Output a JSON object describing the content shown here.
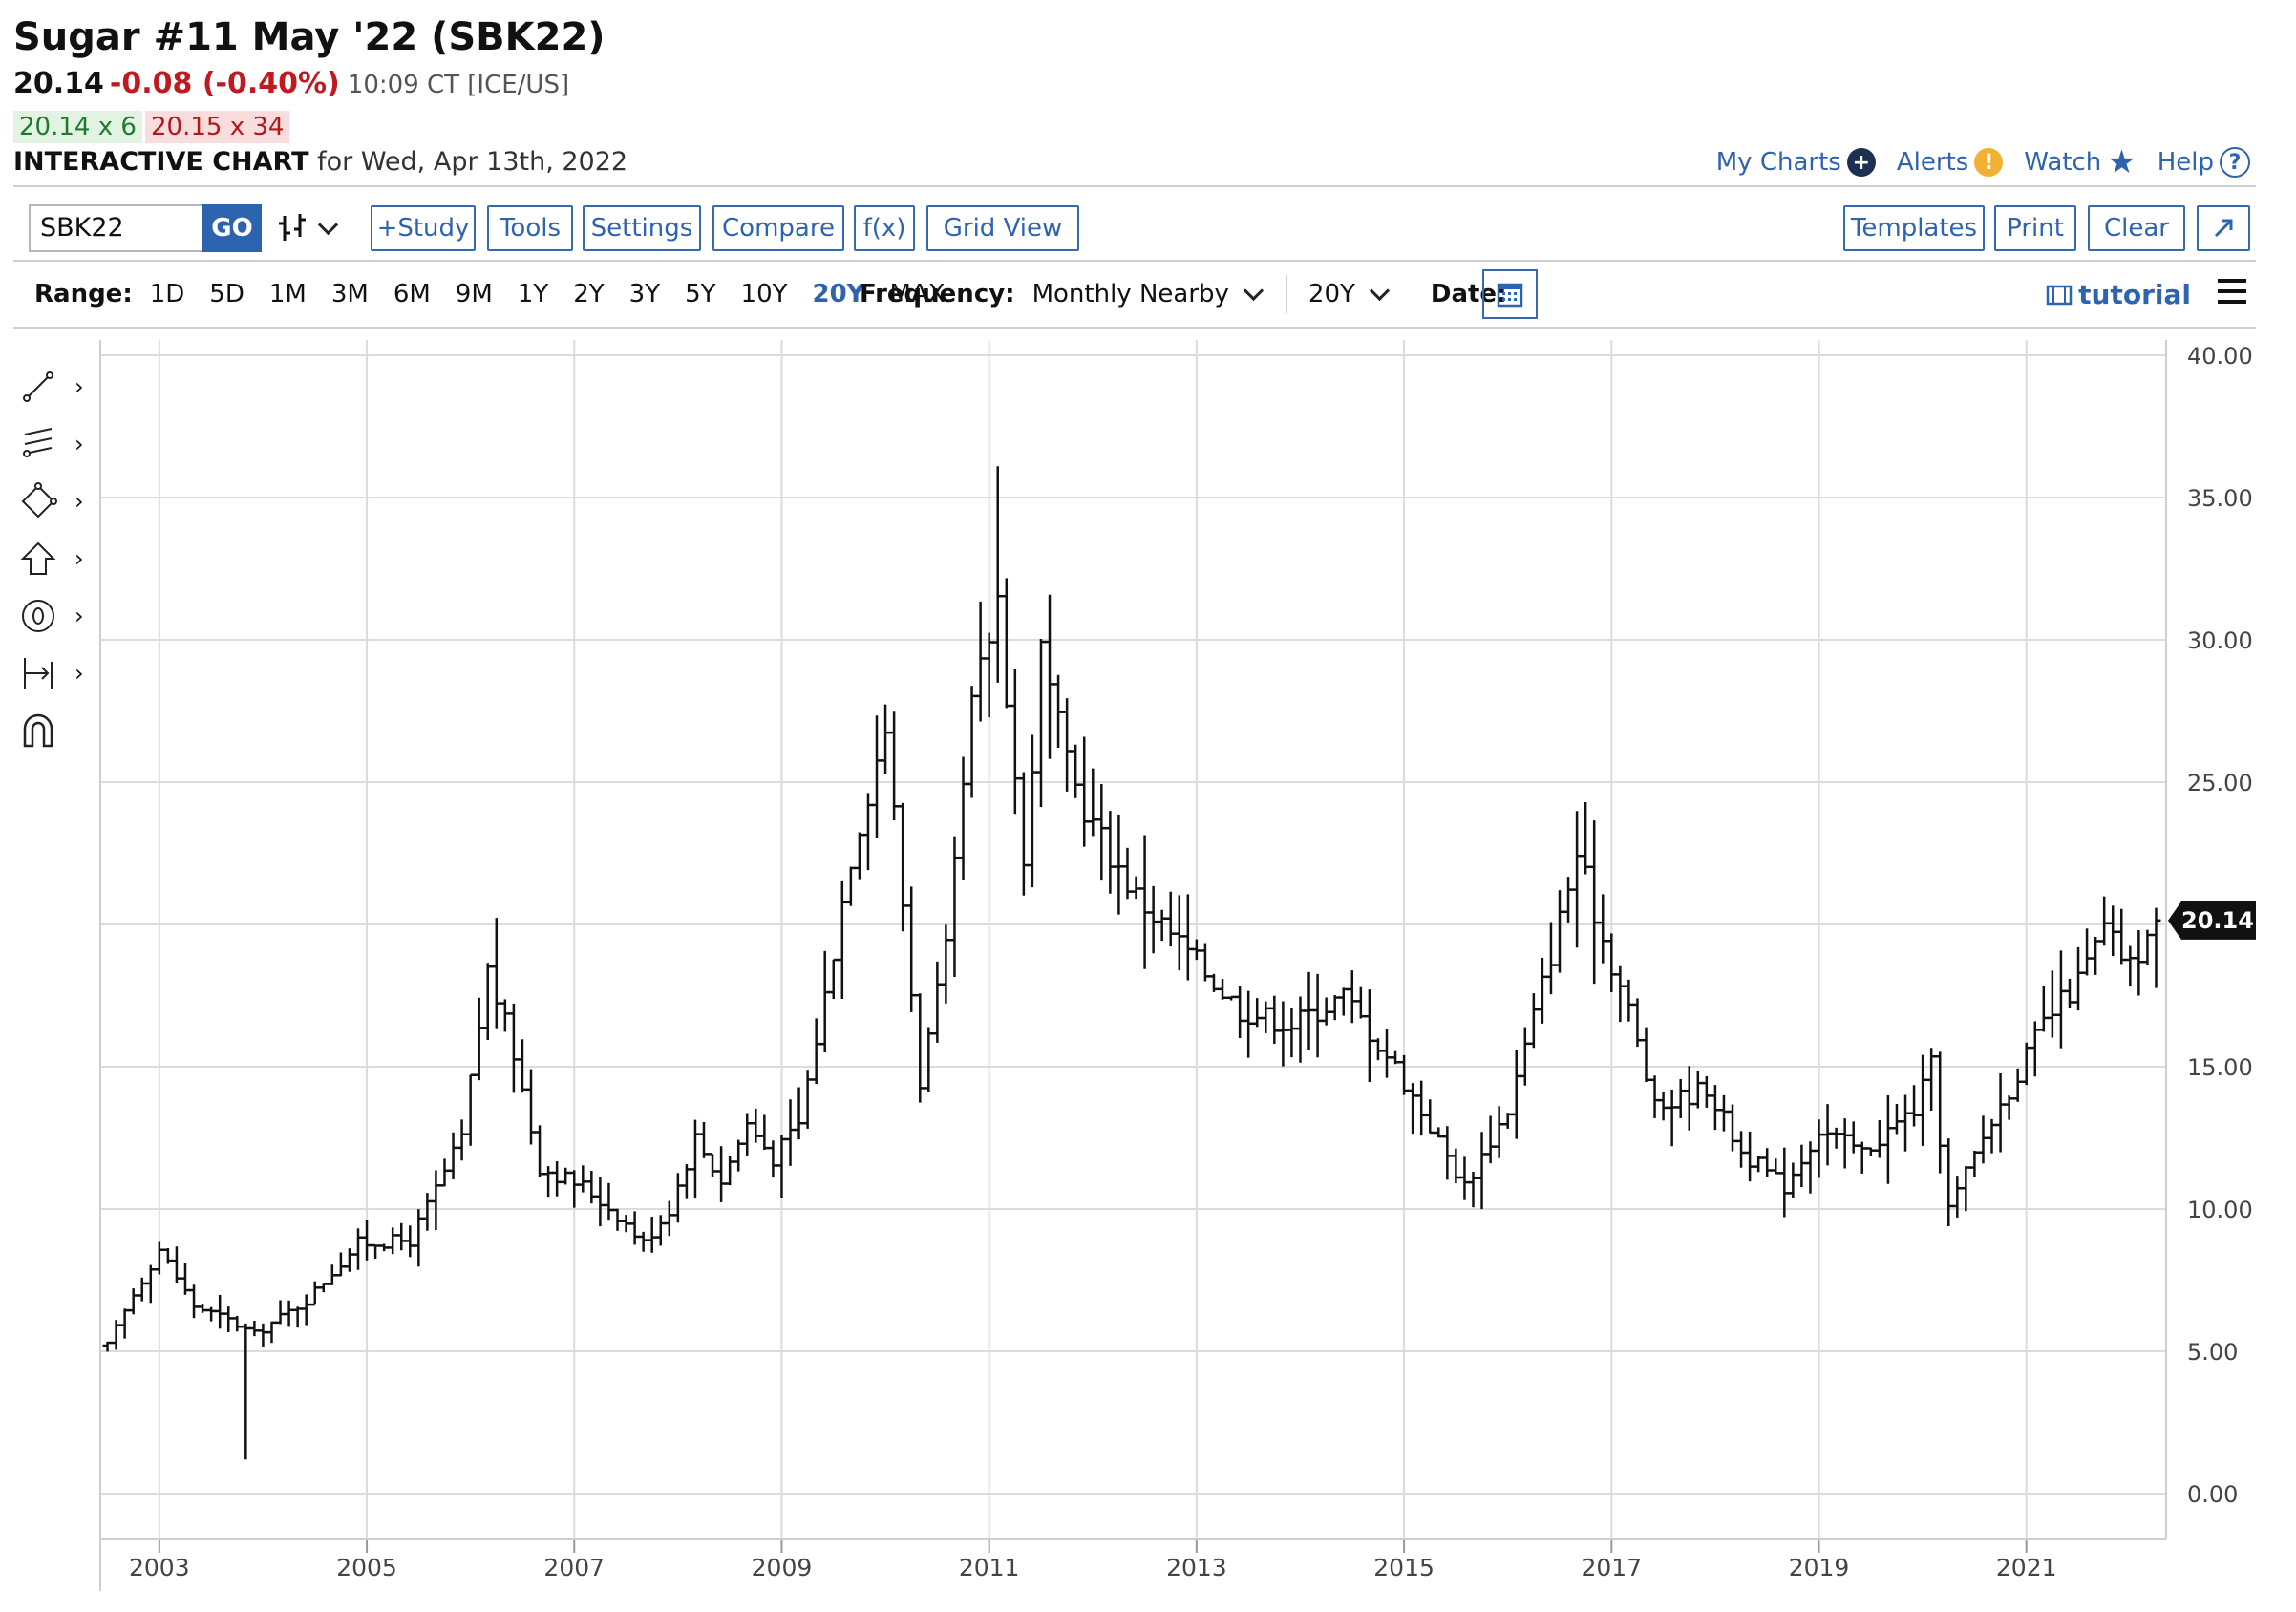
{
  "header": {
    "title": "Sugar #11 May '22 (SBK22)",
    "last": "20.14",
    "change": "-0.08 (-0.40%)",
    "time_exchange": "10:09 CT [ICE/US]",
    "bid": "20.14 x 6",
    "ask": "20.15 x 34",
    "chart_label": "INTERACTIVE CHART",
    "chart_date": "for Wed, Apr 13th, 2022"
  },
  "top_links": {
    "my_charts": "My Charts",
    "alerts": "Alerts",
    "watch": "Watch",
    "help": "Help"
  },
  "toolbar": {
    "symbol_value": "SBK22",
    "go": "GO",
    "study": "+Study",
    "tools": "Tools",
    "settings": "Settings",
    "compare": "Compare",
    "fx": "f(x)",
    "grid_view": "Grid View",
    "templates": "Templates",
    "print": "Print",
    "clear": "Clear"
  },
  "range_bar": {
    "label": "Range:",
    "ranges": [
      "1D",
      "5D",
      "1M",
      "3M",
      "6M",
      "9M",
      "1Y",
      "2Y",
      "3Y",
      "5Y",
      "10Y",
      "20Y",
      "MAX"
    ],
    "active": "20Y",
    "frequency_label": "Frequency:",
    "frequency_value": "Monthly Nearby",
    "period_value": "20Y",
    "date_label": "Date:",
    "tutorial": "tutorial"
  },
  "colors": {
    "accent": "#2e63b0",
    "down": "#c0191f",
    "up_bg": "#e3f3e3",
    "down_bg": "#f9dddd",
    "grid": "#dcdcdc",
    "bar": "#111111"
  },
  "chart_data": {
    "type": "ohlc",
    "frequency": "monthly",
    "x_start": "2002-07",
    "x_end": "2022-04",
    "ylim": [
      0,
      40
    ],
    "y_ticks": [
      "40.00",
      "35.00",
      "30.00",
      "25.00",
      "20.00",
      "15.00",
      "10.00",
      "5.00",
      "0.00"
    ],
    "x_ticks": [
      "2003",
      "2005",
      "2007",
      "2009",
      "2011",
      "2013",
      "2015",
      "2017",
      "2019",
      "2021"
    ],
    "last_price_label": "20.14",
    "grid": true,
    "close_path": [
      {
        "date": "2002-07",
        "value": 5.2
      },
      {
        "date": "2002-10",
        "value": 7.0
      },
      {
        "date": "2003-01",
        "value": 8.6
      },
      {
        "date": "2003-05",
        "value": 6.6
      },
      {
        "date": "2003-09",
        "value": 6.1
      },
      {
        "date": "2003-12",
        "value": 5.6
      },
      {
        "date": "2004-06",
        "value": 6.8
      },
      {
        "date": "2004-12",
        "value": 8.8
      },
      {
        "date": "2005-06",
        "value": 8.9
      },
      {
        "date": "2005-12",
        "value": 12.5
      },
      {
        "date": "2006-03",
        "value": 18.4
      },
      {
        "date": "2006-06",
        "value": 15.5
      },
      {
        "date": "2006-09",
        "value": 11.5
      },
      {
        "date": "2007-02",
        "value": 10.8
      },
      {
        "date": "2007-06",
        "value": 9.8
      },
      {
        "date": "2007-09",
        "value": 8.8
      },
      {
        "date": "2007-12",
        "value": 10.0
      },
      {
        "date": "2008-03",
        "value": 12.5
      },
      {
        "date": "2008-06",
        "value": 11.0
      },
      {
        "date": "2008-09",
        "value": 13.0
      },
      {
        "date": "2008-12",
        "value": 11.8
      },
      {
        "date": "2009-03",
        "value": 13.0
      },
      {
        "date": "2009-06",
        "value": 17.5
      },
      {
        "date": "2009-09",
        "value": 22.5
      },
      {
        "date": "2010-01",
        "value": 27.0
      },
      {
        "date": "2010-05",
        "value": 14.5
      },
      {
        "date": "2010-08",
        "value": 19.0
      },
      {
        "date": "2010-11",
        "value": 27.5
      },
      {
        "date": "2011-02",
        "value": 31.5
      },
      {
        "date": "2011-05",
        "value": 22.0
      },
      {
        "date": "2011-07",
        "value": 29.5
      },
      {
        "date": "2011-10",
        "value": 25.5
      },
      {
        "date": "2012-01",
        "value": 23.5
      },
      {
        "date": "2012-06",
        "value": 21.0
      },
      {
        "date": "2012-12",
        "value": 19.0
      },
      {
        "date": "2013-06",
        "value": 17.0
      },
      {
        "date": "2013-12",
        "value": 16.5
      },
      {
        "date": "2014-06",
        "value": 17.5
      },
      {
        "date": "2014-12",
        "value": 15.0
      },
      {
        "date": "2015-08",
        "value": 10.8
      },
      {
        "date": "2016-01",
        "value": 13.5
      },
      {
        "date": "2016-06",
        "value": 19.0
      },
      {
        "date": "2016-09",
        "value": 22.5
      },
      {
        "date": "2016-12",
        "value": 19.5
      },
      {
        "date": "2017-03",
        "value": 17.0
      },
      {
        "date": "2017-06",
        "value": 13.5
      },
      {
        "date": "2017-12",
        "value": 14.3
      },
      {
        "date": "2018-04",
        "value": 12.0
      },
      {
        "date": "2018-09",
        "value": 10.8
      },
      {
        "date": "2019-01",
        "value": 12.8
      },
      {
        "date": "2019-06",
        "value": 12.0
      },
      {
        "date": "2019-12",
        "value": 13.5
      },
      {
        "date": "2020-02",
        "value": 15.0
      },
      {
        "date": "2020-04",
        "value": 10.0
      },
      {
        "date": "2020-08",
        "value": 12.5
      },
      {
        "date": "2020-12",
        "value": 14.8
      },
      {
        "date": "2021-03",
        "value": 16.5
      },
      {
        "date": "2021-07",
        "value": 18.0
      },
      {
        "date": "2021-10",
        "value": 19.8
      },
      {
        "date": "2022-01",
        "value": 18.5
      },
      {
        "date": "2022-04",
        "value": 20.14
      }
    ],
    "extremes": [
      {
        "date": "2003-11",
        "low": 1.2
      },
      {
        "date": "2011-02",
        "high": 36.1
      }
    ]
  }
}
